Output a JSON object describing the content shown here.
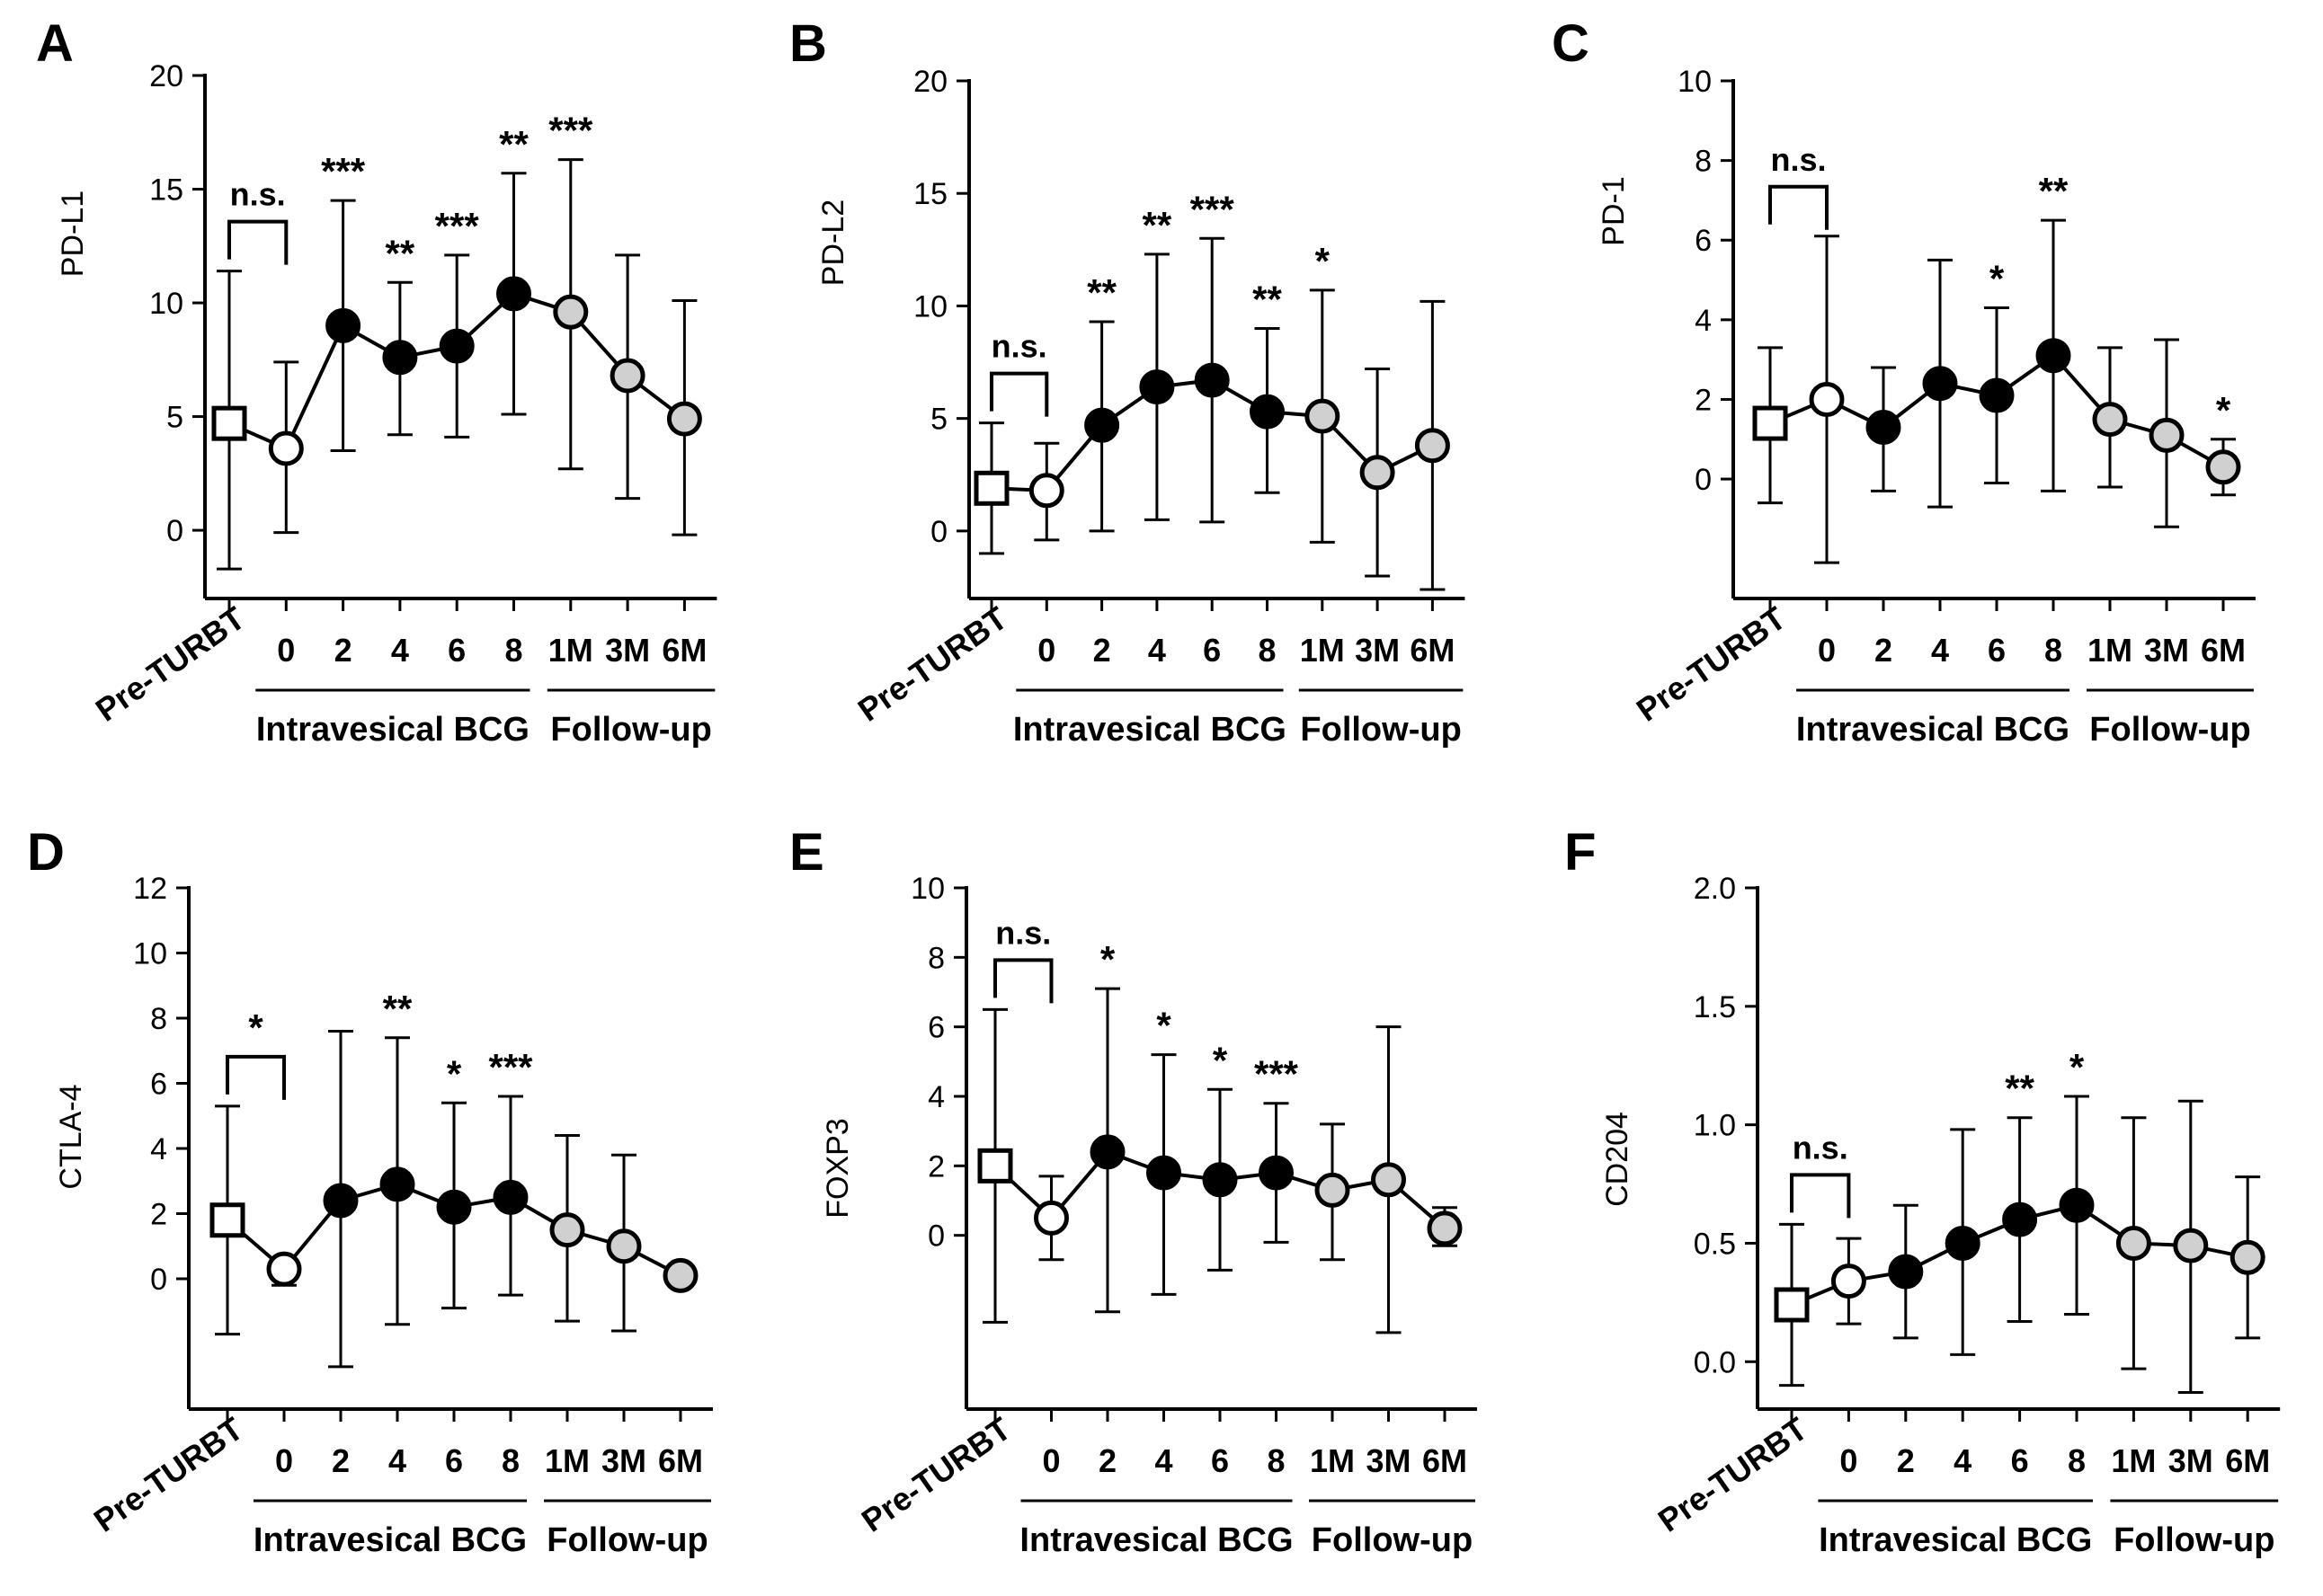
{
  "x_categories": [
    "Pre-TURBT",
    "0",
    "2",
    "4",
    "6",
    "8",
    "1M",
    "3M",
    "6M"
  ],
  "group_labels": {
    "bcg": "Intravesical BCG",
    "follow": "Follow-up"
  },
  "marker_styles": [
    "square-white",
    "circle-white",
    "circle-black",
    "circle-black",
    "circle-black",
    "circle-black",
    "circle-gray",
    "circle-gray",
    "circle-gray"
  ],
  "colors": {
    "white": "#ffffff",
    "black": "#000000",
    "gray": "#d0d0d0",
    "line": "#000000"
  },
  "chart_data": [
    {
      "panel": "A",
      "type": "line",
      "ylabel": "PD-L1",
      "ylim": [
        -3,
        20
      ],
      "yticks": [
        "0",
        "5",
        "10",
        "15",
        "20"
      ],
      "values": [
        4.7,
        3.6,
        9.0,
        7.6,
        8.1,
        10.4,
        9.6,
        6.8,
        4.9
      ],
      "err_low": [
        -1.7,
        -0.1,
        3.5,
        4.2,
        4.1,
        5.1,
        2.7,
        1.4,
        -0.2
      ],
      "err_high": [
        11.4,
        7.4,
        14.5,
        10.9,
        12.1,
        15.7,
        16.3,
        12.1,
        10.1
      ],
      "sig": [
        "",
        "",
        "***",
        "**",
        "***",
        "**",
        "***",
        "",
        ""
      ],
      "bracket_label": "n.s."
    },
    {
      "panel": "B",
      "type": "line",
      "ylabel": "PD-L2",
      "ylim": [
        -3,
        20
      ],
      "yticks": [
        "0",
        "5",
        "10",
        "15",
        "20"
      ],
      "values": [
        1.9,
        1.8,
        4.7,
        6.4,
        6.7,
        5.3,
        5.1,
        2.6,
        3.8
      ],
      "err_low": [
        -1.0,
        -0.4,
        0.0,
        0.5,
        0.4,
        1.7,
        -0.5,
        -2.0,
        -2.6
      ],
      "err_high": [
        4.8,
        3.9,
        9.3,
        12.3,
        13.0,
        9.0,
        10.7,
        7.2,
        10.2
      ],
      "sig": [
        "",
        "",
        "**",
        "**",
        "***",
        "**",
        "*",
        "",
        ""
      ],
      "bracket_label": "n.s."
    },
    {
      "panel": "C",
      "type": "line",
      "ylabel": "PD-1",
      "ylim": [
        -3,
        10
      ],
      "yticks": [
        "0",
        "2",
        "4",
        "6",
        "8",
        "10"
      ],
      "values": [
        1.4,
        2.0,
        1.3,
        2.4,
        2.1,
        3.1,
        1.5,
        1.1,
        0.3
      ],
      "err_low": [
        -0.6,
        -2.1,
        -0.3,
        -0.7,
        -0.1,
        -0.3,
        -0.2,
        -1.2,
        -0.4
      ],
      "err_high": [
        3.3,
        6.1,
        2.8,
        5.5,
        4.3,
        6.5,
        3.3,
        3.5,
        1.0
      ],
      "sig": [
        "",
        "",
        "",
        "",
        "*",
        "**",
        "",
        "",
        "*"
      ],
      "bracket_label": "n.s."
    },
    {
      "panel": "D",
      "type": "line",
      "ylabel": "CTLA-4",
      "ylim": [
        -4,
        12
      ],
      "yticks": [
        "0",
        "2",
        "4",
        "6",
        "8",
        "10",
        "12"
      ],
      "values": [
        1.8,
        0.3,
        2.4,
        2.9,
        2.2,
        2.5,
        1.5,
        1.0,
        0.1
      ],
      "err_low": [
        -1.7,
        -0.2,
        -2.7,
        -1.4,
        -0.9,
        -0.5,
        -1.3,
        -1.6,
        0.0
      ],
      "err_high": [
        5.3,
        0.6,
        7.6,
        7.4,
        5.4,
        5.6,
        4.4,
        3.8,
        0.2
      ],
      "sig": [
        "",
        "*",
        "",
        "**",
        "*",
        "***",
        "",
        "",
        ""
      ],
      "bracket_label": ""
    },
    {
      "panel": "E",
      "type": "line",
      "ylabel": "FOXP3",
      "ylim": [
        -5,
        10
      ],
      "yticks": [
        "0",
        "2",
        "4",
        "6",
        "8",
        "10"
      ],
      "values": [
        2.0,
        0.5,
        2.4,
        1.8,
        1.6,
        1.8,
        1.3,
        1.6,
        0.2
      ],
      "err_low": [
        -2.5,
        -0.7,
        -2.2,
        -1.7,
        -1.0,
        -0.2,
        -0.7,
        -2.8,
        -0.3
      ],
      "err_high": [
        6.5,
        1.7,
        7.1,
        5.2,
        4.2,
        3.8,
        3.2,
        6.0,
        0.8
      ],
      "sig": [
        "",
        "",
        "*",
        "*",
        "*",
        "***",
        "",
        "",
        ""
      ],
      "bracket_label": "n.s."
    },
    {
      "panel": "F",
      "type": "line",
      "ylabel": "CD204",
      "ylim": [
        -0.2,
        2.0
      ],
      "yticks": [
        "0.0",
        "0.5",
        "1.0",
        "1.5",
        "2.0"
      ],
      "values": [
        0.24,
        0.34,
        0.38,
        0.5,
        0.6,
        0.66,
        0.5,
        0.49,
        0.44
      ],
      "err_low": [
        -0.1,
        0.16,
        0.1,
        0.03,
        0.17,
        0.2,
        -0.03,
        -0.13,
        0.1
      ],
      "err_high": [
        0.58,
        0.52,
        0.66,
        0.98,
        1.03,
        1.12,
        1.03,
        1.1,
        0.78
      ],
      "sig": [
        "",
        "",
        "",
        "",
        "**",
        "*",
        "",
        "",
        ""
      ],
      "bracket_label": "n.s."
    }
  ]
}
